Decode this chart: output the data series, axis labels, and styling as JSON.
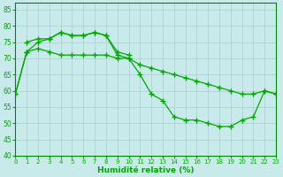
{
  "xlabel": "Humidité relative (%)",
  "xlim": [
    0,
    23
  ],
  "ylim": [
    40,
    87
  ],
  "yticks": [
    40,
    45,
    50,
    55,
    60,
    65,
    70,
    75,
    80,
    85
  ],
  "xticks": [
    0,
    1,
    2,
    3,
    4,
    5,
    6,
    7,
    8,
    9,
    10,
    11,
    12,
    13,
    14,
    15,
    16,
    17,
    18,
    19,
    20,
    21,
    22,
    23
  ],
  "bg_color": "#c8eaea",
  "grid_color": "#aacccc",
  "line_color": "#00aa00",
  "line1_x": [
    0,
    1,
    2,
    3,
    4,
    5,
    6,
    7,
    8,
    9,
    10,
    11,
    12,
    13,
    14,
    15,
    16,
    17,
    18,
    19,
    20,
    21,
    22,
    23
  ],
  "line1_y": [
    59,
    72,
    75,
    76,
    78,
    77,
    77,
    78,
    77,
    71,
    70,
    65,
    59,
    57,
    52,
    51,
    51,
    50,
    49,
    49,
    51,
    52,
    60,
    59
  ],
  "line2_x": [
    0,
    1,
    2,
    3,
    4,
    5,
    6,
    7,
    8,
    9,
    10,
    11,
    12,
    13,
    14,
    15,
    16,
    17,
    18,
    19,
    20,
    21,
    22,
    23
  ],
  "line2_y": [
    59,
    72,
    73,
    72,
    71,
    71,
    71,
    71,
    71,
    70,
    70,
    68,
    67,
    66,
    65,
    64,
    63,
    62,
    61,
    60,
    59,
    59,
    60,
    59
  ],
  "line3_x": [
    1,
    2,
    3,
    4,
    5,
    6,
    7,
    8,
    9,
    10
  ],
  "line3_y": [
    75,
    76,
    76,
    78,
    77,
    77,
    78,
    77,
    72,
    71
  ]
}
